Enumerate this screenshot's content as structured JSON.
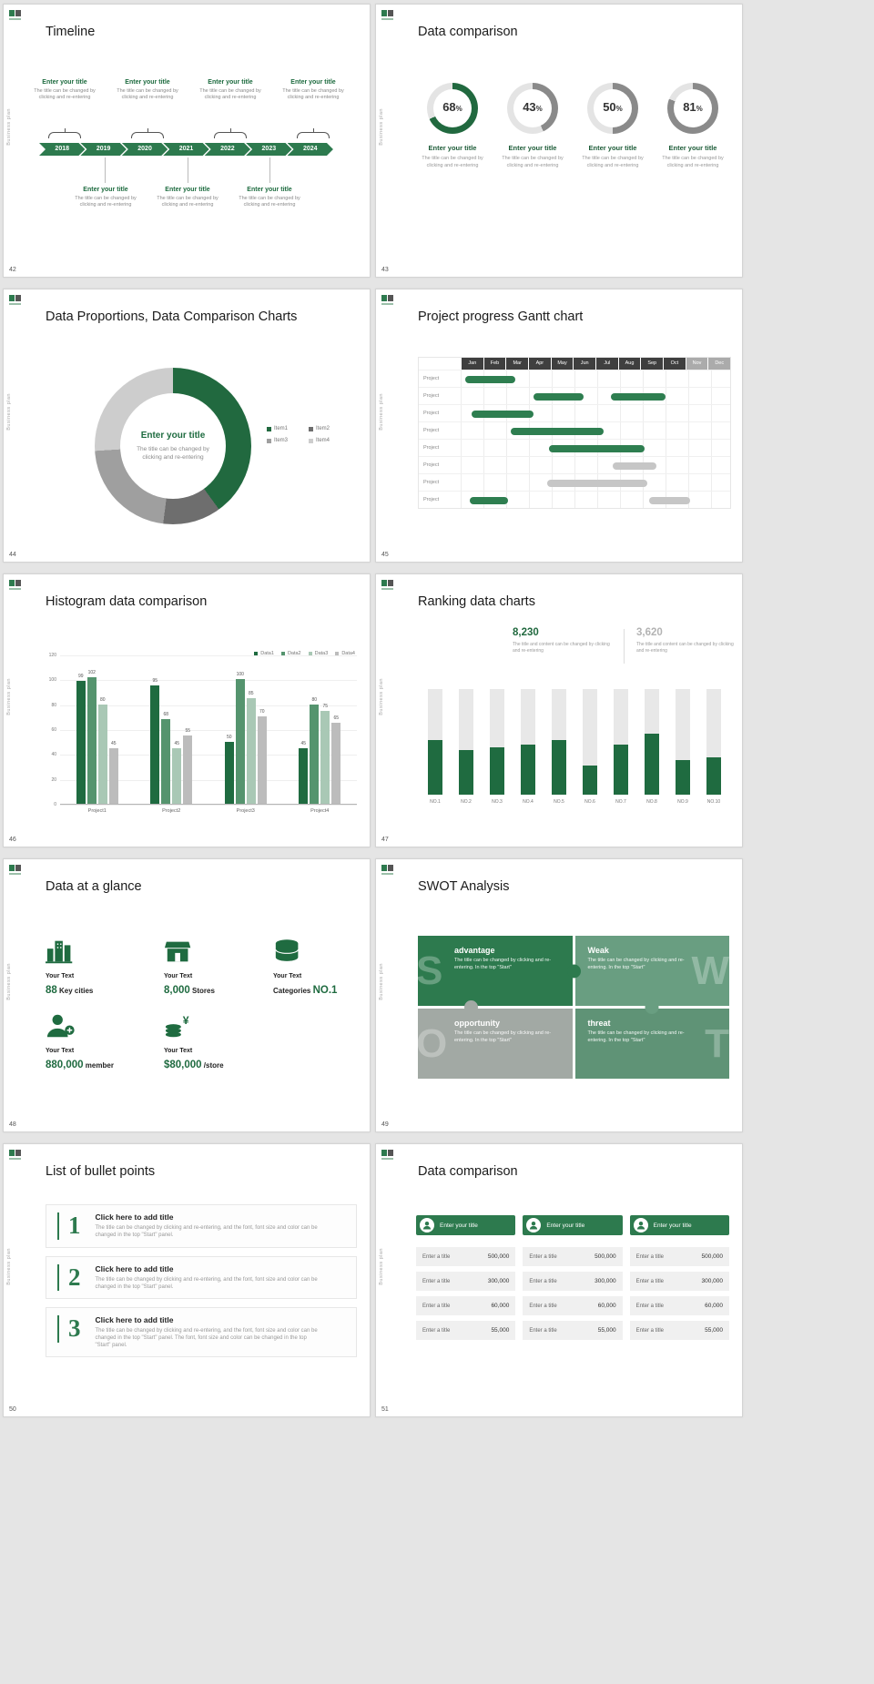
{
  "page": {
    "background": "#e5e5e5",
    "accent_green": "#2d7a4e"
  },
  "common": {
    "vertical_label": "Business plan"
  },
  "slides": {
    "timeline": {
      "number": "42",
      "title": "Timeline",
      "years": [
        "2018",
        "2019",
        "2020",
        "2021",
        "2022",
        "2023",
        "2024"
      ],
      "top_items": [
        {
          "title": "Enter your title",
          "body": "The title can be changed by clicking and re-entering"
        },
        {
          "title": "Enter your title",
          "body": "The title can be changed by clicking and re-entering"
        },
        {
          "title": "Enter your title",
          "body": "The title can be changed by clicking and re-entering"
        },
        {
          "title": "Enter your title",
          "body": "The title can be changed by clicking and re-entering"
        }
      ],
      "bottom_items": [
        {
          "title": "Enter your title",
          "body": "The title can be changed by clicking and re-entering"
        },
        {
          "title": "Enter your title",
          "body": "The title can be changed by clicking and re-entering"
        },
        {
          "title": "Enter your title",
          "body": "The title can be changed by clicking and re-entering"
        }
      ]
    },
    "circles": {
      "number": "43",
      "title": "Data comparison",
      "track_color": "#e4e4e4",
      "items": [
        {
          "value": "68",
          "unit": "%",
          "arc_pct": 68,
          "arc_color": "#21693f",
          "label": "Enter your title",
          "body": "The title can be changed by clicking and re-entering"
        },
        {
          "value": "43",
          "unit": "%",
          "arc_pct": 43,
          "arc_color": "#8a8a8a",
          "label": "Enter your title",
          "body": "The title can be changed by clicking and re-entering"
        },
        {
          "value": "50",
          "unit": "%",
          "arc_pct": 50,
          "arc_color": "#8a8a8a",
          "label": "Enter your title",
          "body": "The title can be changed by clicking and re-entering"
        },
        {
          "value": "81",
          "unit": "%",
          "arc_pct": 81,
          "arc_color": "#8a8a8a",
          "label": "Enter your title",
          "body": "The title can be changed by clicking and re-entering"
        }
      ]
    },
    "proportions": {
      "number": "44",
      "title": "Data Proportions, Data Comparison Charts",
      "center_title": "Enter your title",
      "center_body": "The title can be changed by clicking and re-entering",
      "chart_data": {
        "type": "pie",
        "segments": [
          {
            "label": "Item1",
            "value": 40,
            "color": "#21693f"
          },
          {
            "label": "Item2",
            "value": 12,
            "color": "#6e6e6e"
          },
          {
            "label": "Item3",
            "value": 22,
            "color": "#9f9f9f"
          },
          {
            "label": "Item4",
            "value": 26,
            "color": "#cdcdcd"
          }
        ]
      }
    },
    "gantt": {
      "number": "45",
      "title": "Project progress Gantt chart",
      "months": [
        "Jan",
        "Feb",
        "Mar",
        "Apr",
        "May",
        "Jun",
        "Jul",
        "Aug",
        "Sep",
        "Oct",
        "Nov",
        "Dec"
      ],
      "muted_months": [
        "Nov",
        "Dec"
      ],
      "header_bg": "#3f3f3f",
      "header_muted_bg": "#ababab",
      "row_label": "Project",
      "rows": [
        {
          "bars": [
            {
              "start": 0.2,
              "end": 2.4,
              "color": "#2e7e50"
            }
          ]
        },
        {
          "bars": [
            {
              "start": 3.2,
              "end": 5.4,
              "color": "#2e7e50"
            },
            {
              "start": 6.6,
              "end": 9.0,
              "color": "#2e7e50"
            }
          ]
        },
        {
          "bars": [
            {
              "start": 0.5,
              "end": 3.2,
              "color": "#2e7e50"
            }
          ]
        },
        {
          "bars": [
            {
              "start": 2.2,
              "end": 6.3,
              "color": "#2e7e50"
            }
          ]
        },
        {
          "bars": [
            {
              "start": 3.9,
              "end": 8.1,
              "color": "#2e7e50"
            }
          ]
        },
        {
          "bars": [
            {
              "start": 6.7,
              "end": 8.6,
              "color": "#c6c6c6"
            }
          ]
        },
        {
          "bars": [
            {
              "start": 3.8,
              "end": 8.2,
              "color": "#c6c6c6"
            }
          ]
        },
        {
          "bars": [
            {
              "start": 0.4,
              "end": 2.1,
              "color": "#2e7e50"
            },
            {
              "start": 8.3,
              "end": 10.1,
              "color": "#c6c6c6"
            }
          ]
        }
      ]
    },
    "histogram": {
      "number": "46",
      "title": "Histogram data comparison",
      "chart_data": {
        "type": "bar",
        "categories": [
          "Project1",
          "Project2",
          "Project3",
          "Project4"
        ],
        "series": [
          {
            "name": "Data1",
            "color": "#1f6b40",
            "values": [
              99,
              95,
              50,
              45
            ]
          },
          {
            "name": "Data2",
            "color": "#55946e",
            "values": [
              102,
              68,
              100,
              80
            ]
          },
          {
            "name": "Data3",
            "color": "#a9c8b5",
            "values": [
              80,
              45,
              85,
              75
            ]
          },
          {
            "name": "Data4",
            "color": "#bcbcbc",
            "values": [
              45,
              55,
              70,
              65
            ]
          }
        ],
        "y_ticks": [
          0,
          20,
          40,
          60,
          80,
          100,
          120
        ],
        "y_max": 120,
        "legend_position": "top-right",
        "grid": true
      }
    },
    "ranking": {
      "number": "47",
      "title": "Ranking data charts",
      "highlight": {
        "value": "8,230",
        "color": "#21693f",
        "body": "The title and content can be changed by clicking and re-entering"
      },
      "secondary": {
        "value": "3,620",
        "color": "#b3b3b3",
        "body": "The title and content can be changed by clicking and re-entering"
      },
      "chart_data": {
        "type": "bar",
        "categories": [
          "NO.1",
          "NO.2",
          "NO.3",
          "NO.4",
          "NO.5",
          "NO.6",
          "NO.7",
          "NO.8",
          "NO.9",
          "NO.10"
        ],
        "values": [
          52,
          42,
          45,
          47,
          52,
          28,
          47,
          58,
          33,
          35
        ],
        "y_max": 100,
        "bar_color": "#1f6b40",
        "track_color": "#e8e8e8"
      }
    },
    "glance": {
      "number": "48",
      "title": "Data at a glance",
      "items": [
        {
          "icon": "buildings-icon",
          "label": "Your Text",
          "prefix": "",
          "value": "88",
          "suffix": "Key cities"
        },
        {
          "icon": "store-icon",
          "label": "Your Text",
          "prefix": "",
          "value": "8,000",
          "suffix": "Stores"
        },
        {
          "icon": "categories-icon",
          "label": "Your Text",
          "prefix": "Categories",
          "value": "NO.1",
          "suffix": ""
        },
        {
          "icon": "member-icon",
          "label": "Your Text",
          "prefix": "",
          "value": "880,000",
          "suffix": "member"
        },
        {
          "icon": "income-icon",
          "label": "Your Text",
          "prefix": "",
          "value": "$80,000",
          "suffix": "/store"
        }
      ]
    },
    "swot": {
      "number": "49",
      "title": "SWOT Analysis",
      "quadrants": [
        {
          "letter": "S",
          "letter_side": "left",
          "heading": "advantage",
          "body": "The title can be changed by clicking and re-entering. In the top \"Start\"",
          "color": "#2d7a4e"
        },
        {
          "letter": "W",
          "letter_side": "right",
          "heading": "Weak",
          "body": "The title can be changed by clicking and re-entering. In the top \"Start\"",
          "color": "#699e81"
        },
        {
          "letter": "O",
          "letter_side": "left",
          "heading": "opportunity",
          "body": "The title can be changed by clicking and re-entering. In the top \"Start\"",
          "color": "#a2a9a4"
        },
        {
          "letter": "T",
          "letter_side": "right",
          "heading": "threat",
          "body": "The title can be changed by clicking and re-entering. In the top \"Start\"",
          "color": "#5f9376"
        }
      ]
    },
    "bullets": {
      "number": "50",
      "title": "List of bullet points",
      "items": [
        {
          "num": "1",
          "heading": "Click here to add title",
          "body": "The title can be changed by clicking and re-entering, and the font, font size and color can be changed in the top \"Start\" panel."
        },
        {
          "num": "2",
          "heading": "Click here to add title",
          "body": "The title can be changed by clicking and re-entering, and the font, font size and color can be changed in the top \"Start\" panel."
        },
        {
          "num": "3",
          "heading": "Click here to add title",
          "body": "The title can be changed by clicking and re-entering, and the font, font size and color can be changed in the top \"Start\" panel. The font, font size and color can be changed in the top \"Start\" panel."
        }
      ]
    },
    "tables": {
      "number": "51",
      "title": "Data comparison",
      "columns": [
        {
          "header": "Enter your title",
          "icon": "person-badge-icon",
          "rows": [
            {
              "label": "Enter a title",
              "value": "500,000"
            },
            {
              "label": "Enter a title",
              "value": "300,000"
            },
            {
              "label": "Enter a title",
              "value": "60,000"
            },
            {
              "label": "Enter a title",
              "value": "55,000"
            }
          ]
        },
        {
          "header": "Enter your title",
          "icon": "person-badge-icon",
          "rows": [
            {
              "label": "Enter a title",
              "value": "500,000"
            },
            {
              "label": "Enter a title",
              "value": "300,000"
            },
            {
              "label": "Enter a title",
              "value": "60,000"
            },
            {
              "label": "Enter a title",
              "value": "55,000"
            }
          ]
        },
        {
          "header": "Enter your title",
          "icon": "person-badge-icon",
          "rows": [
            {
              "label": "Enter a title",
              "value": "500,000"
            },
            {
              "label": "Enter a title",
              "value": "300,000"
            },
            {
              "label": "Enter a title",
              "value": "60,000"
            },
            {
              "label": "Enter a title",
              "value": "55,000"
            }
          ]
        }
      ]
    }
  }
}
